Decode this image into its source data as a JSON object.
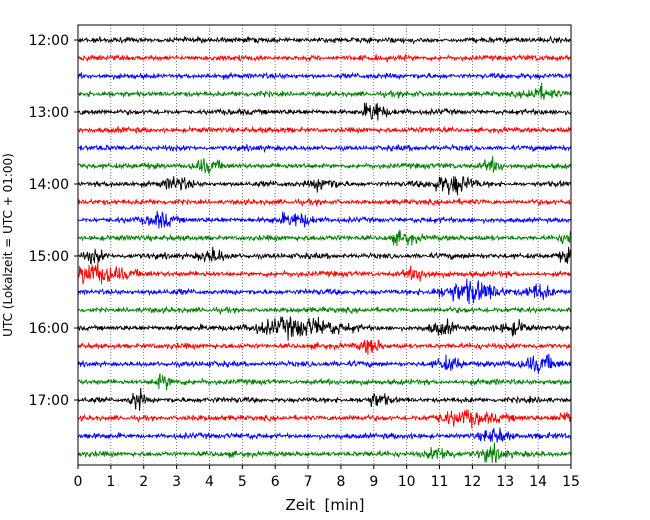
{
  "chart_data": {
    "type": "line",
    "title": "",
    "xlabel": "Zeit  [min]",
    "ylabel": "UTC (Lokalzeit = UTC + 01:00)",
    "xlim": [
      0,
      15
    ],
    "x_ticks": [
      "0",
      "1",
      "2",
      "3",
      "4",
      "5",
      "6",
      "7",
      "8",
      "9",
      "10",
      "11",
      "12",
      "13",
      "14",
      "15"
    ],
    "y_ticks": [
      "12:00",
      "13:00",
      "14:00",
      "15:00",
      "16:00",
      "17:00"
    ],
    "grid": "vertical dotted lines at each minute",
    "trace_interval_min": 15,
    "trace_start": "12:00",
    "trace_count": 24,
    "color_cycle": [
      "#000000",
      "#ff0000",
      "#0000ff",
      "#008000"
    ],
    "legend": "none"
  }
}
